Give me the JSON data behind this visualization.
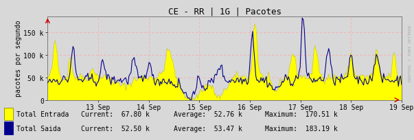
{
  "title": "CE - RR | 1G | Pacotes",
  "ylabel": "pacotes por segundo",
  "xlabel_ticks": [
    "13 Sep",
    "14 Sep",
    "15 Sep",
    "16 Sep",
    "17 Sep",
    "18 Sep",
    "19 Sep"
  ],
  "ytick_labels": [
    "0",
    "50 k",
    "100 k",
    "150 k"
  ],
  "ytick_vals": [
    0,
    50000,
    100000,
    150000
  ],
  "ymax": 185000,
  "background_color": "#d8d8d8",
  "plot_bg_color": "#d8d8d8",
  "entrada_fill_color": "#ffff00",
  "entrada_line_color": "#c8c800",
  "saida_line_color": "#00008b",
  "legend_entrada_label": "Total Entrada",
  "legend_saida_label": "Total Saida",
  "legend_entrada_current": "67.80 k",
  "legend_entrada_average": "52.76 k",
  "legend_entrada_maximum": "170.51 k",
  "legend_saida_current": "52.50 k",
  "legend_saida_average": "53.47 k",
  "legend_saida_maximum": "183.19 k",
  "watermark": "RRDTOOL / TOBI OETIKER",
  "n_points": 336,
  "seed": 42
}
